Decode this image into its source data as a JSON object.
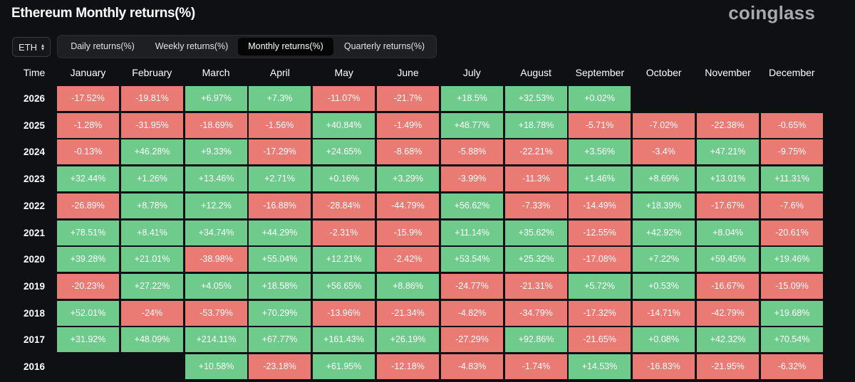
{
  "title": "Ethereum Monthly returns(%)",
  "brand": "coinglass",
  "coin_select": {
    "value": "ETH",
    "icon": "chevron-up-down-icon"
  },
  "tabs": [
    {
      "label": "Daily returns(%)",
      "active": false
    },
    {
      "label": "Weekly returns(%)",
      "active": false
    },
    {
      "label": "Monthly returns(%)",
      "active": true
    },
    {
      "label": "Quarterly returns(%)",
      "active": false
    }
  ],
  "colors": {
    "positive": "#6fcb8b",
    "negative": "#ea7a74",
    "background": "#0f1013"
  },
  "chart_data": {
    "type": "heatmap",
    "title": "Ethereum Monthly returns(%)",
    "row_header": "Time",
    "columns": [
      "January",
      "February",
      "March",
      "April",
      "May",
      "June",
      "July",
      "August",
      "September",
      "October",
      "November",
      "December"
    ],
    "rows": [
      {
        "year": "2026",
        "values": [
          "-17.52%",
          "-19.81%",
          "+6.97%",
          "+7.3%",
          "-11.07%",
          "-21.7%",
          "+18.5%",
          "+32.53%",
          "+0.02%",
          null,
          null,
          null
        ]
      },
      {
        "year": "2025",
        "values": [
          "-1.28%",
          "-31.95%",
          "-18.69%",
          "-1.56%",
          "+40.84%",
          "-1.49%",
          "+48.77%",
          "+18.78%",
          "-5.71%",
          "-7.02%",
          "-22.38%",
          "-0.65%"
        ]
      },
      {
        "year": "2024",
        "values": [
          "-0.13%",
          "+46.28%",
          "+9.33%",
          "-17.29%",
          "+24.65%",
          "-8.68%",
          "-5.88%",
          "-22.21%",
          "+3.56%",
          "-3.4%",
          "+47.21%",
          "-9.75%"
        ]
      },
      {
        "year": "2023",
        "values": [
          "+32.44%",
          "+1.26%",
          "+13.46%",
          "+2.71%",
          "+0.16%",
          "+3.29%",
          "-3.99%",
          "-11.3%",
          "+1.46%",
          "+8.69%",
          "+13.01%",
          "+11.31%"
        ]
      },
      {
        "year": "2022",
        "values": [
          "-26.89%",
          "+8.78%",
          "+12.2%",
          "-16.88%",
          "-28.84%",
          "-44.79%",
          "+56.62%",
          "-7.33%",
          "-14.49%",
          "+18.39%",
          "-17.67%",
          "-7.6%"
        ]
      },
      {
        "year": "2021",
        "values": [
          "+78.51%",
          "+8.41%",
          "+34.74%",
          "+44.29%",
          "-2.31%",
          "-15.9%",
          "+11.14%",
          "+35.62%",
          "-12.55%",
          "+42.92%",
          "+8.04%",
          "-20.61%"
        ]
      },
      {
        "year": "2020",
        "values": [
          "+39.28%",
          "+21.01%",
          "-38.98%",
          "+55.04%",
          "+12.21%",
          "-2.42%",
          "+53.54%",
          "+25.32%",
          "-17.08%",
          "+7.22%",
          "+59.45%",
          "+19.46%"
        ]
      },
      {
        "year": "2019",
        "values": [
          "-20.23%",
          "+27.22%",
          "+4.05%",
          "+18.58%",
          "+56.65%",
          "+8.86%",
          "-24.77%",
          "-21.31%",
          "+5.72%",
          "+0.53%",
          "-16.67%",
          "-15.09%"
        ]
      },
      {
        "year": "2018",
        "values": [
          "+52.01%",
          "-24%",
          "-53.79%",
          "+70.29%",
          "-13.96%",
          "-21.34%",
          "-4.82%",
          "-34.79%",
          "-17.32%",
          "-14.71%",
          "-42.79%",
          "+19.68%"
        ]
      },
      {
        "year": "2017",
        "values": [
          "+31.92%",
          "+48.09%",
          "+214.11%",
          "+67.77%",
          "+161.43%",
          "+26.19%",
          "-27.29%",
          "+92.86%",
          "-21.65%",
          "+0.08%",
          "+42.32%",
          "+70.54%"
        ]
      },
      {
        "year": "2016",
        "values": [
          null,
          null,
          "+10.58%",
          "-23.18%",
          "+61.95%",
          "-12.18%",
          "-4.83%",
          "-1.74%",
          "+14.53%",
          "-16.83%",
          "-21.95%",
          "-6.32%"
        ]
      }
    ]
  }
}
